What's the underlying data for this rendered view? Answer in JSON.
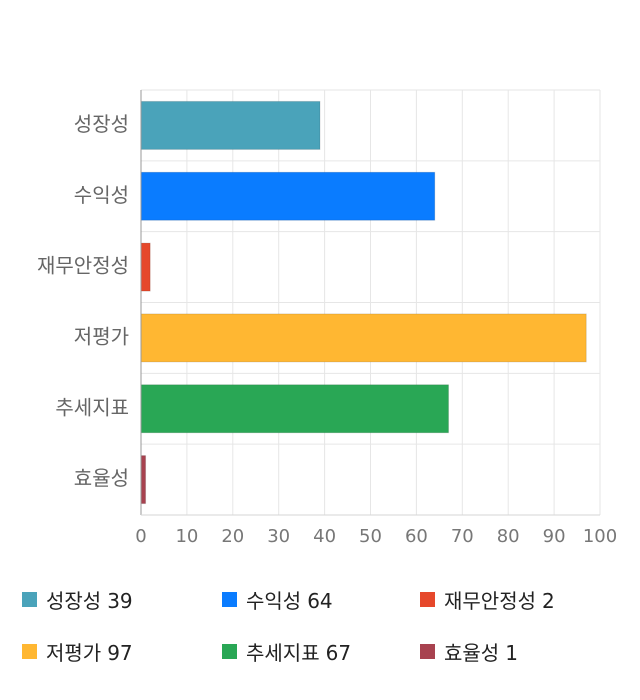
{
  "chart_data": {
    "type": "bar",
    "orientation": "horizontal",
    "title": "",
    "xlabel": "",
    "ylabel": "",
    "categories": [
      "성장성",
      "수익성",
      "재무안정성",
      "저평가",
      "추세지표",
      "효율성"
    ],
    "values": [
      39,
      64,
      2,
      97,
      67,
      1
    ],
    "colors": [
      "#4aa3ba",
      "#0a7cff",
      "#e6482b",
      "#ffb732",
      "#29a755",
      "#a8424f"
    ],
    "xlim": [
      0,
      100
    ],
    "xticks": [
      "0",
      "10",
      "20",
      "30",
      "40",
      "50",
      "60",
      "70",
      "80",
      "90",
      "100"
    ],
    "grid": true,
    "legend_placement": "bottom"
  }
}
